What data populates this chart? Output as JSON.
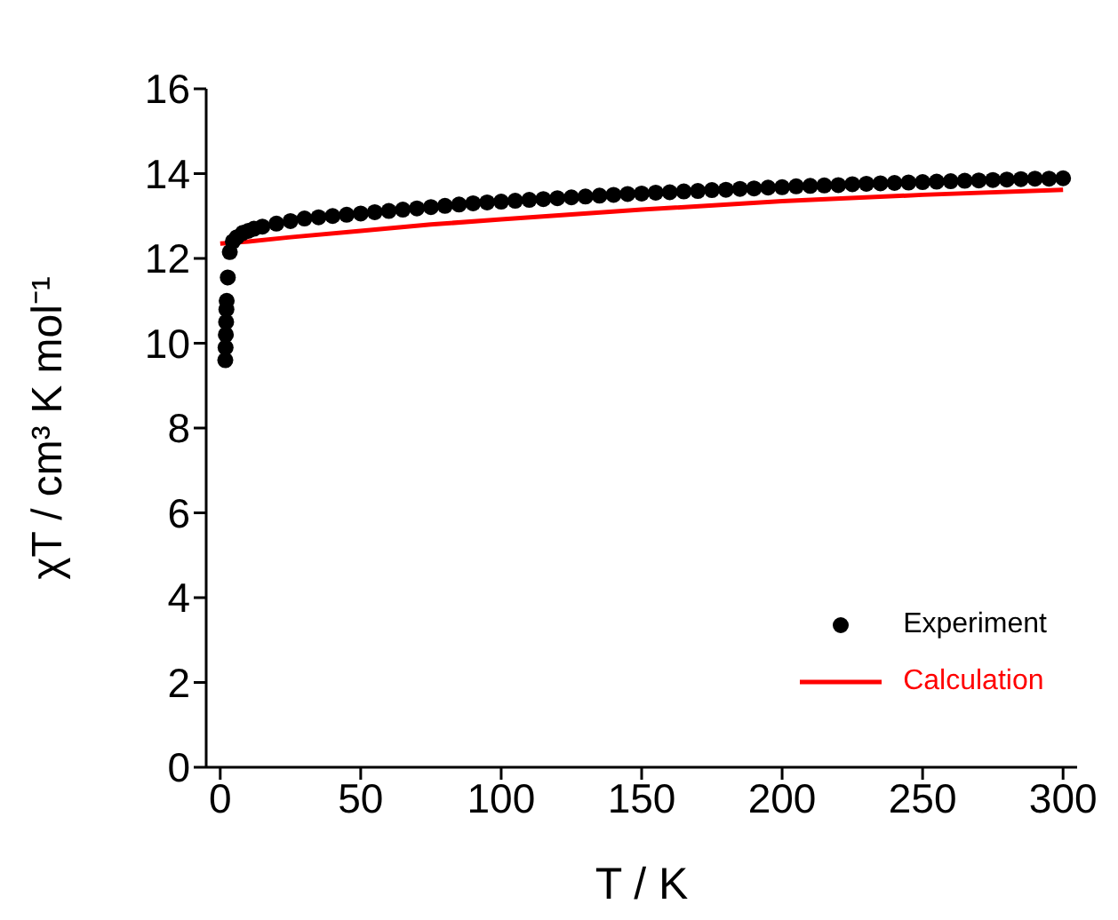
{
  "chart_data": {
    "type": "scatter",
    "xlabel": "T / K",
    "ylabel": "χT / cm³ K mol⁻¹",
    "xlim": [
      -5,
      305
    ],
    "xticks": [
      0,
      50,
      100,
      150,
      200,
      250,
      300
    ],
    "ylim": [
      0,
      16
    ],
    "yticks": [
      0,
      2,
      4,
      6,
      8,
      10,
      12,
      14,
      16
    ],
    "legend": "bottom right",
    "series": [
      {
        "name": "Experiment",
        "marker": "circle",
        "color": "#000000",
        "x": [
          1.8,
          1.9,
          2.0,
          2.1,
          2.2,
          2.3,
          2.7,
          3.4,
          4.5,
          5.9,
          8,
          10,
          12,
          15,
          20,
          25,
          30,
          35,
          40,
          45,
          50,
          55,
          60,
          65,
          70,
          75,
          80,
          85,
          90,
          95,
          100,
          105,
          110,
          115,
          120,
          125,
          130,
          135,
          140,
          145,
          150,
          155,
          160,
          165,
          170,
          175,
          180,
          185,
          190,
          195,
          200,
          205,
          210,
          215,
          220,
          225,
          230,
          235,
          240,
          245,
          250,
          255,
          260,
          265,
          270,
          275,
          280,
          285,
          290,
          295,
          300
        ],
        "values": [
          9.6,
          9.9,
          10.2,
          10.5,
          10.8,
          11.0,
          11.55,
          12.15,
          12.4,
          12.5,
          12.6,
          12.65,
          12.7,
          12.75,
          12.82,
          12.88,
          12.94,
          12.97,
          13.0,
          13.03,
          13.06,
          13.09,
          13.12,
          13.15,
          13.18,
          13.21,
          13.24,
          13.27,
          13.3,
          13.32,
          13.34,
          13.36,
          13.38,
          13.4,
          13.42,
          13.44,
          13.46,
          13.48,
          13.5,
          13.52,
          13.53,
          13.55,
          13.56,
          13.58,
          13.59,
          13.61,
          13.62,
          13.64,
          13.65,
          13.67,
          13.68,
          13.7,
          13.71,
          13.72,
          13.73,
          13.75,
          13.76,
          13.77,
          13.78,
          13.79,
          13.8,
          13.81,
          13.82,
          13.83,
          13.84,
          13.85,
          13.86,
          13.87,
          13.88,
          13.88,
          13.89
        ]
      },
      {
        "name": "Calculation",
        "type": "line",
        "marker": "none",
        "color": "#ff0000",
        "line_style": "solid",
        "x": [
          0,
          10,
          25,
          50,
          75,
          100,
          150,
          200,
          250,
          300
        ],
        "values": [
          12.35,
          12.4,
          12.5,
          12.65,
          12.8,
          12.92,
          13.15,
          13.35,
          13.5,
          13.62
        ]
      }
    ]
  }
}
